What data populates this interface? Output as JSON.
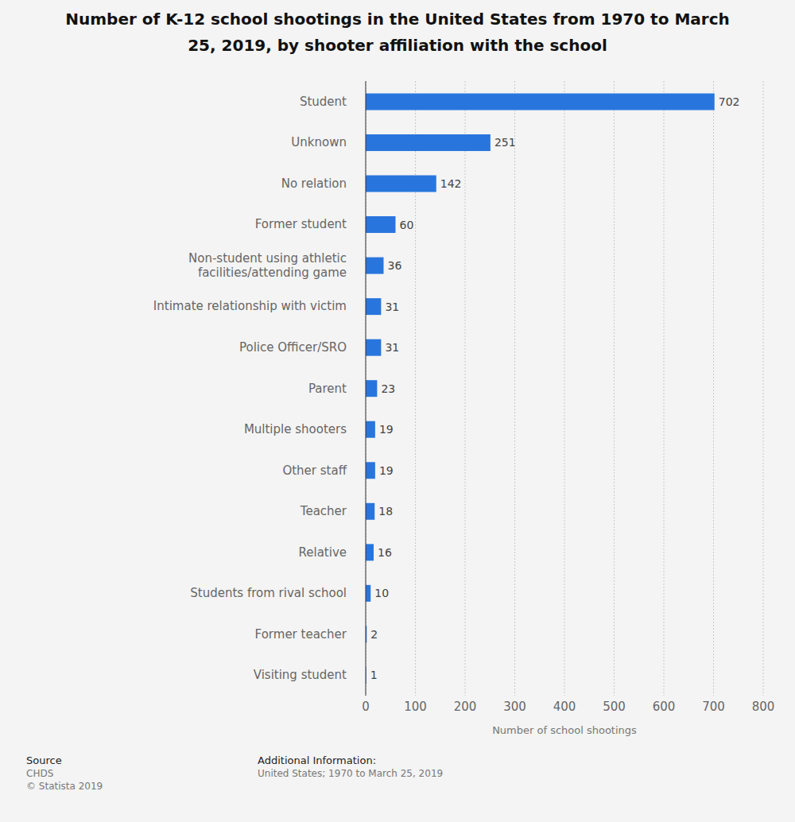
{
  "chart_data": {
    "type": "bar",
    "title": "Number of K-12 school shootings in the United States from 1970 to March 25, 2019, by shooter affiliation with the school",
    "categories": [
      "Student",
      "Unknown",
      "No relation",
      "Former student",
      "Non-student using athletic facilities/attending game",
      "Intimate relationship with victim",
      "Police Officer/SRO",
      "Parent",
      "Multiple shooters",
      "Other staff",
      "Teacher",
      "Relative",
      "Students from rival school",
      "Former teacher",
      "Visiting student"
    ],
    "values": [
      702,
      251,
      142,
      60,
      36,
      31,
      31,
      23,
      19,
      19,
      18,
      16,
      10,
      2,
      1
    ],
    "color": "#2876dd",
    "orientation": "horizontal",
    "data_labels": true,
    "grid": true,
    "xlim": [
      0,
      800
    ],
    "xticks": [
      0,
      100,
      200,
      300,
      400,
      500,
      600,
      700,
      800
    ],
    "xlabel": "Number of school shootings",
    "source_title": "Source",
    "source_lines": [
      "CHDS",
      "© Statista 2019"
    ],
    "info_title": "Additional Information:",
    "info_lines": [
      "United States; 1970 to March 25, 2019"
    ]
  }
}
